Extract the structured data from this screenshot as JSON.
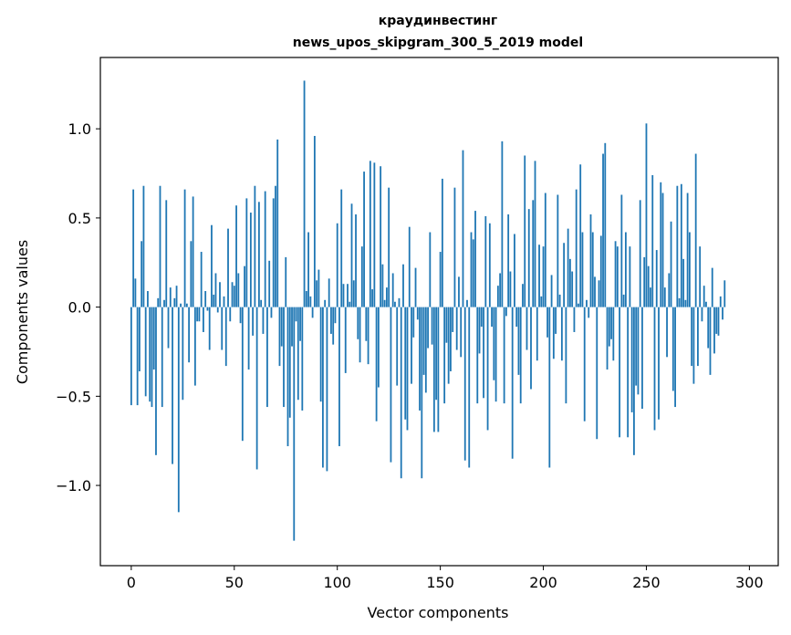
{
  "chart_data": {
    "type": "bar",
    "title": "краудинвестинг",
    "subtitle": "news_upos_skipgram_300_5_2019 model",
    "xlabel": "Vector components",
    "ylabel": "Components values",
    "xlim": [
      -15,
      314
    ],
    "ylim": [
      -1.45,
      1.4
    ],
    "xticks": [
      0,
      50,
      100,
      150,
      200,
      250,
      300
    ],
    "xtick_labels": [
      "0",
      "50",
      "100",
      "150",
      "200",
      "250",
      "300"
    ],
    "yticks": [
      -1.0,
      -0.5,
      0.0,
      0.5,
      1.0
    ],
    "ytick_labels": [
      "−1.0",
      "−0.5",
      "0.0",
      "0.5",
      "1.0"
    ],
    "bar_color": "#1f77b4",
    "values": [
      -0.55,
      0.66,
      0.16,
      -0.55,
      -0.36,
      0.37,
      0.68,
      -0.5,
      0.09,
      -0.53,
      -0.56,
      -0.35,
      -0.83,
      0.05,
      0.68,
      -0.56,
      0.04,
      0.6,
      -0.23,
      0.11,
      -0.88,
      0.05,
      0.12,
      -1.15,
      0.02,
      -0.52,
      0.66,
      0.02,
      -0.31,
      0.37,
      0.62,
      -0.44,
      -0.08,
      -0.08,
      0.31,
      -0.14,
      0.09,
      -0.02,
      -0.24,
      0.46,
      0.07,
      0.19,
      -0.03,
      0.14,
      -0.24,
      0.06,
      -0.33,
      0.44,
      -0.08,
      0.14,
      0.12,
      0.57,
      0.19,
      -0.09,
      -0.75,
      0.23,
      0.61,
      -0.35,
      0.53,
      -0.16,
      0.68,
      -0.91,
      0.59,
      0.04,
      -0.15,
      0.65,
      -0.56,
      0.26,
      -0.06,
      0.61,
      0.68,
      0.94,
      -0.33,
      -0.22,
      -0.56,
      0.28,
      -0.78,
      -0.62,
      -0.22,
      -1.31,
      -0.08,
      -0.52,
      -0.19,
      -0.58,
      1.27,
      0.09,
      0.42,
      0.06,
      -0.06,
      0.96,
      0.15,
      0.21,
      -0.53,
      -0.9,
      0.04,
      -0.92,
      0.16,
      -0.15,
      -0.21,
      -0.09,
      0.47,
      -0.78,
      0.66,
      0.13,
      -0.37,
      0.13,
      0.03,
      0.58,
      0.15,
      0.52,
      -0.18,
      -0.31,
      0.34,
      0.76,
      -0.19,
      -0.32,
      0.82,
      0.1,
      0.81,
      -0.64,
      -0.45,
      0.79,
      0.24,
      0.04,
      0.11,
      0.67,
      -0.87,
      0.19,
      0.03,
      -0.44,
      0.05,
      -0.96,
      0.24,
      -0.63,
      -0.69,
      0.45,
      -0.43,
      -0.17,
      0.22,
      -0.07,
      -0.58,
      -0.96,
      -0.38,
      -0.48,
      -0.23,
      0.42,
      -0.21,
      -0.7,
      -0.52,
      -0.7,
      0.31,
      0.72,
      -0.54,
      -0.2,
      -0.43,
      -0.36,
      -0.14,
      0.67,
      -0.24,
      0.17,
      -0.28,
      0.88,
      -0.86,
      0.04,
      -0.9,
      0.42,
      0.38,
      0.54,
      -0.54,
      -0.26,
      -0.11,
      -0.51,
      0.51,
      -0.69,
      0.47,
      -0.11,
      -0.41,
      -0.53,
      0.12,
      0.19,
      0.93,
      -0.54,
      -0.05,
      0.52,
      0.2,
      -0.85,
      0.41,
      -0.11,
      -0.38,
      -0.54,
      0.13,
      0.85,
      -0.24,
      0.55,
      -0.46,
      0.6,
      0.82,
      -0.3,
      0.35,
      0.06,
      0.34,
      0.64,
      -0.17,
      -0.9,
      0.18,
      -0.29,
      -0.15,
      0.63,
      0.07,
      -0.3,
      0.36,
      -0.54,
      0.44,
      0.27,
      0.2,
      -0.14,
      0.66,
      0.02,
      0.8,
      0.42,
      -0.64,
      0.04,
      -0.06,
      0.52,
      0.42,
      0.17,
      -0.74,
      0.15,
      0.4,
      0.86,
      0.92,
      -0.35,
      -0.22,
      -0.18,
      -0.3,
      0.37,
      0.34,
      -0.73,
      0.63,
      0.07,
      0.42,
      -0.73,
      0.34,
      -0.59,
      -0.83,
      -0.44,
      -0.49,
      0.6,
      -0.57,
      0.28,
      1.03,
      0.23,
      0.11,
      0.74,
      -0.69,
      0.32,
      -0.63,
      0.7,
      0.64,
      0.11,
      -0.28,
      0.19,
      0.48,
      -0.47,
      -0.56,
      0.68,
      0.05,
      0.69,
      0.27,
      0.04,
      0.64,
      0.42,
      -0.33,
      -0.43,
      0.86,
      -0.33,
      0.34,
      -0.08,
      0.12,
      0.03,
      -0.23,
      -0.38,
      0.22,
      -0.26,
      -0.15,
      -0.16,
      0.06,
      -0.07,
      0.15
    ]
  }
}
